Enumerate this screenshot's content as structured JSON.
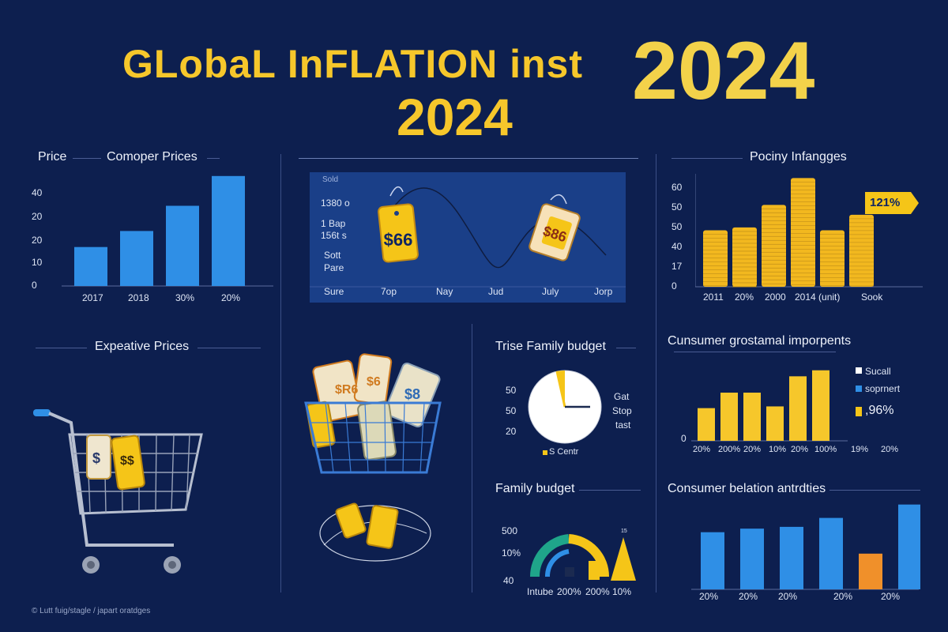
{
  "header": {
    "title": "GLobaL InFLATION inst",
    "year_large": "2024",
    "year_small": "2024"
  },
  "panel_compare": {
    "label_left": "Price",
    "title": "Comoper Prices",
    "y_ticks": [
      "40",
      "20",
      "20",
      "10",
      "0"
    ],
    "x_labels": [
      "2017",
      "2018",
      "30%",
      "20%"
    ],
    "chart_data": {
      "type": "bar",
      "categories": [
        "2017",
        "2018",
        "30%",
        "20%"
      ],
      "values": [
        17,
        24,
        35,
        48
      ],
      "ylim": [
        0,
        50
      ]
    }
  },
  "panel_line": {
    "y_labels": [
      "Sold",
      "1380 o",
      "1 Bap",
      "156t s",
      "Sott",
      "Pare"
    ],
    "x_labels": [
      "Sure",
      "7op",
      "Nay",
      "Jud",
      "July",
      "Jorp"
    ],
    "tag_left": "$66",
    "tag_right": "$86"
  },
  "panel_policy": {
    "title": "Pociny Infangges",
    "y_ticks": [
      "60",
      "50",
      "50",
      "40",
      "17",
      "0"
    ],
    "x_labels": [
      "2011",
      "20%",
      "2000",
      "2014 (unit)",
      "Sook"
    ],
    "badge": "121%",
    "chart_data": {
      "type": "bar",
      "categories": [
        "1",
        "2",
        "3",
        "4",
        "5",
        "6"
      ],
      "values": [
        40,
        42,
        58,
        77,
        40,
        51
      ],
      "ylim": [
        0,
        80
      ]
    }
  },
  "panel_expensive": {
    "title": "Expeative Prices",
    "tag_label_a": "$",
    "tag_label_b": "$$",
    "basket_tag_a": "$R6",
    "basket_tag_b": "$6",
    "basket_tag_c": "$8"
  },
  "panel_family": {
    "title": "Trise Family budget",
    "y_ticks": [
      "50",
      "50",
      "20"
    ],
    "right_labels": [
      "Gat",
      "Stop",
      "tast"
    ],
    "legend": "S Centr"
  },
  "panel_consumer_top": {
    "title": "Cunsumer grostamal imporpents",
    "y_ticks": [
      "0"
    ],
    "x_labels": [
      "20%",
      "200%",
      "20%",
      "10%",
      "20%",
      "100%",
      "19%",
      "20%"
    ],
    "legend": [
      {
        "label": "Sucall",
        "color": "#ffffff"
      },
      {
        "label": "soprnert",
        "color": "#2f8fe6"
      },
      {
        "label": ",96%",
        "color": "#f5c518"
      }
    ],
    "chart_data": {
      "type": "bar",
      "categories": [
        "1",
        "2",
        "3",
        "4",
        "5",
        "6"
      ],
      "values": [
        38,
        56,
        56,
        40,
        75,
        82
      ],
      "ylim": [
        0,
        90
      ]
    }
  },
  "panel_family2": {
    "title": "Family budget",
    "y_ticks": [
      "500",
      "10%",
      "40"
    ],
    "x_labels": [
      "Intube",
      "200%",
      "200%",
      "10%"
    ],
    "small_label": "15"
  },
  "panel_consumer_bottom": {
    "title": "Consumer belation antrdties",
    "x_labels": [
      "20%",
      "20%",
      "20%",
      "20%",
      "20%"
    ],
    "chart_data": {
      "type": "bar",
      "categories": [
        "1",
        "2",
        "3",
        "4",
        "5",
        "6",
        "7"
      ],
      "values": [
        64,
        68,
        70,
        80,
        40,
        95,
        0
      ],
      "ylim": [
        0,
        100
      ]
    }
  },
  "footer": {
    "credit": "© Lutt fuig/stagle / japart oratdges"
  },
  "colors": {
    "background": "#0d1f4f",
    "yellow": "#f6c72b",
    "blue": "#2f8fe6",
    "orange": "#f0902a"
  }
}
